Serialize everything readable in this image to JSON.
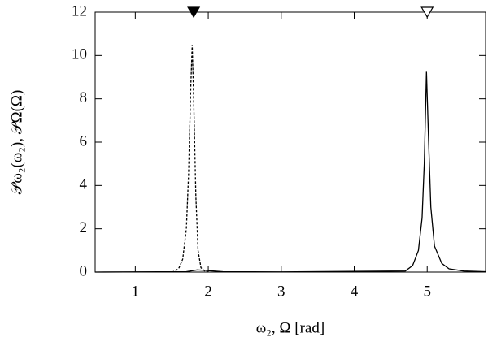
{
  "chart_data": {
    "type": "line",
    "xlabel": "ω₂, Ω [rad]",
    "ylabel": "𝒫ω₂(ω₂), 𝒫Ω(Ω)",
    "xlim": [
      0.45,
      5.8
    ],
    "ylim": [
      0,
      12
    ],
    "xticks": [
      1,
      2,
      3,
      4,
      5
    ],
    "yticks": [
      0,
      2,
      4,
      6,
      8,
      10,
      12
    ],
    "series": [
      {
        "color": "#000000",
        "line_style": "dashed",
        "x": [
          1.5,
          1.55,
          1.6,
          1.65,
          1.7,
          1.73,
          1.76,
          1.78,
          1.8,
          1.83,
          1.86,
          1.9,
          1.95,
          2.0
        ],
        "values": [
          0,
          0.05,
          0.2,
          0.6,
          2,
          4.5,
          8.5,
          10.5,
          8,
          3.5,
          1,
          0.2,
          0.05,
          0
        ]
      },
      {
        "color": "#000000",
        "line_style": "solid",
        "x": [
          0.45,
          1.7,
          1.85,
          1.95,
          2.2,
          3,
          4.7,
          4.8,
          4.88,
          4.93,
          4.96,
          4.99,
          5.02,
          5.05,
          5.1,
          5.2,
          5.3,
          5.5,
          5.8
        ],
        "values": [
          0,
          0.02,
          0.1,
          0.08,
          0.02,
          0.01,
          0.05,
          0.3,
          1,
          2.5,
          5,
          9.25,
          6,
          3,
          1.2,
          0.4,
          0.15,
          0.05,
          0.02
        ]
      }
    ],
    "markers": [
      {
        "x": 1.8,
        "style": "filled"
      },
      {
        "x": 5.0,
        "style": "open"
      }
    ]
  }
}
